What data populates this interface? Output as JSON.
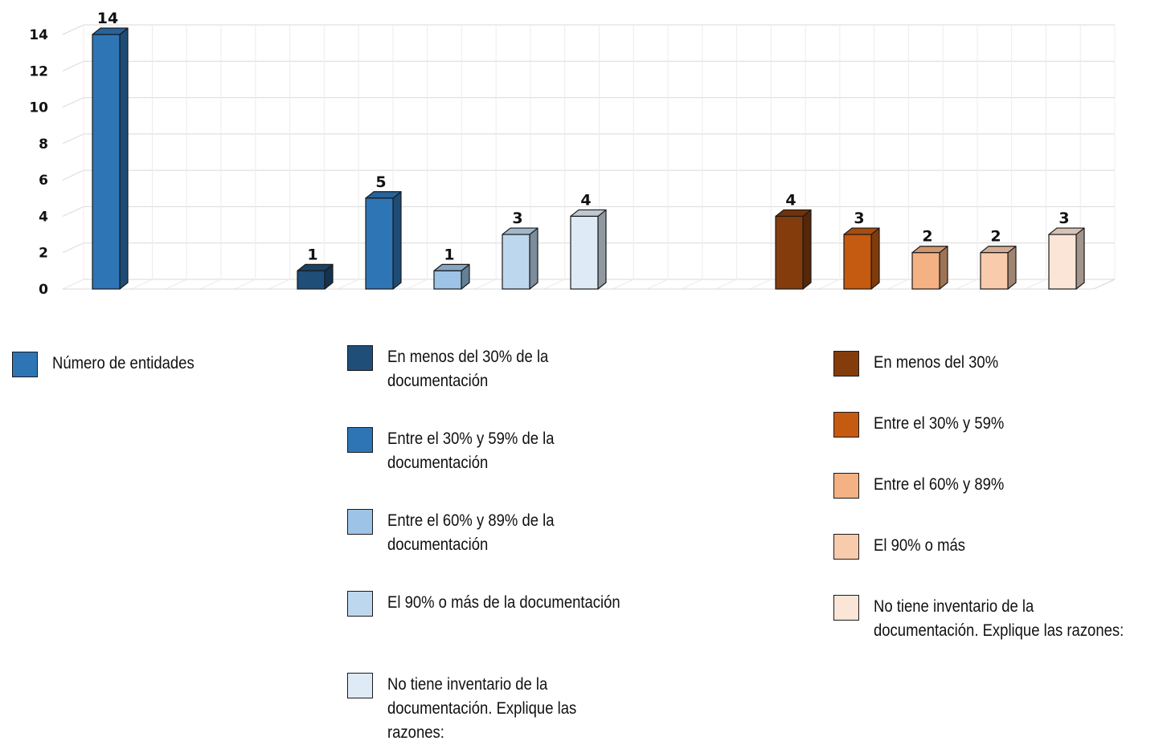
{
  "chart_data": {
    "type": "bar",
    "ylim": [
      0,
      14
    ],
    "yticks": [
      "0",
      "2",
      "4",
      "6",
      "8",
      "10",
      "12",
      "14"
    ],
    "grid": true,
    "groups": [
      {
        "series": [
          {
            "name": "Número de entidades",
            "value": 14,
            "color": "#2E75B6"
          }
        ]
      },
      {
        "series": [
          {
            "name": "En menos del 30% de la documentación",
            "value": 1,
            "color": "#1F4E79"
          },
          {
            "name": "Entre el 30% y 59% de la documentación",
            "value": 5,
            "color": "#2E75B6"
          },
          {
            "name": "Entre el 60% y 89% de la documentación",
            "value": 1,
            "color": "#9DC3E6"
          },
          {
            "name": "El 90% o más de la documentación",
            "value": 3,
            "color": "#BDD7EE"
          },
          {
            "name": "No tiene inventario de la documentación. Explique las razones:",
            "value": 4,
            "color": "#DEEBF7"
          }
        ]
      },
      {
        "series": [
          {
            "name": "En menos del 30%",
            "value": 4,
            "color": "#843C0C"
          },
          {
            "name": "Entre el 30% y 59%",
            "value": 3,
            "color": "#C55A11"
          },
          {
            "name": "Entre el 60% y 89%",
            "value": 2,
            "color": "#F4B183"
          },
          {
            "name": "El 90% o más",
            "value": 2,
            "color": "#F8CBAD"
          },
          {
            "name": "No tiene inventario de la documentación. Explique las razones:",
            "value": 3,
            "color": "#FBE5D6"
          }
        ]
      }
    ]
  }
}
